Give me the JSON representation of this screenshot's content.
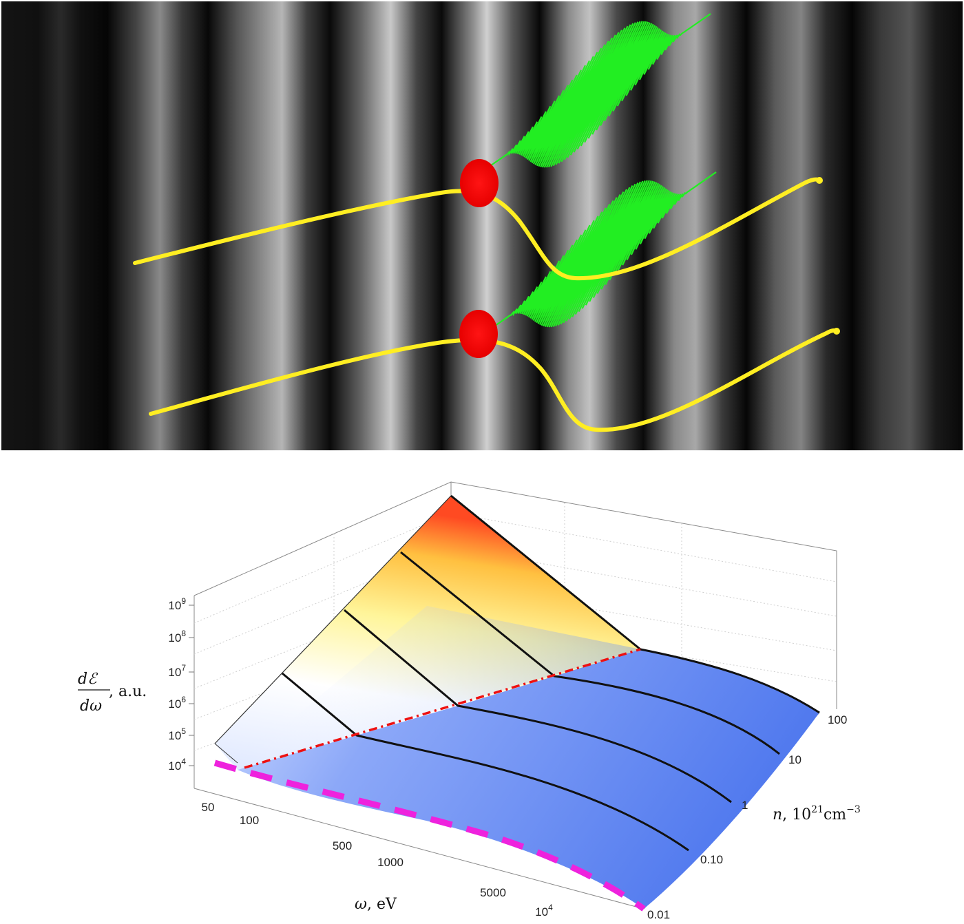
{
  "top_panel": {
    "background": "interference fringes (alternating dark/bright vertical bands)",
    "trajectory_color": "#ffee22",
    "emission_point_color": "#ff0a0a",
    "radiation_color": "#22ee22"
  },
  "bottom_panel": {
    "z_axis": {
      "label_num": "dℰ",
      "label_den": "dω",
      "label_unit": ", a.u.",
      "ticks": [
        {
          "base": "10",
          "exp": "9"
        },
        {
          "base": "10",
          "exp": "8"
        },
        {
          "base": "10",
          "exp": "7"
        },
        {
          "base": "10",
          "exp": "6"
        },
        {
          "base": "10",
          "exp": "5"
        },
        {
          "base": "10",
          "exp": "4"
        }
      ]
    },
    "x_axis": {
      "label_sym": "ω",
      "label_unit": ", eV",
      "ticks": [
        "50",
        "100",
        "500",
        "1000",
        "5000"
      ],
      "last_tick": {
        "base": "10",
        "exp": "4"
      }
    },
    "y_axis": {
      "label_sym": "n",
      "label_unit": ", 10",
      "label_exp1": "21",
      "label_cm": "cm",
      "label_exp2": "−3",
      "ticks": [
        "100",
        "10",
        "1",
        "0.10",
        "0.01"
      ]
    },
    "colors": {
      "surface_low": "#5c86f0",
      "surface_high": "#ff5a28",
      "threshold_line": "#ee1111",
      "lower_bound_line": "#ee22dd",
      "ridge_lines": "#111111"
    }
  }
}
